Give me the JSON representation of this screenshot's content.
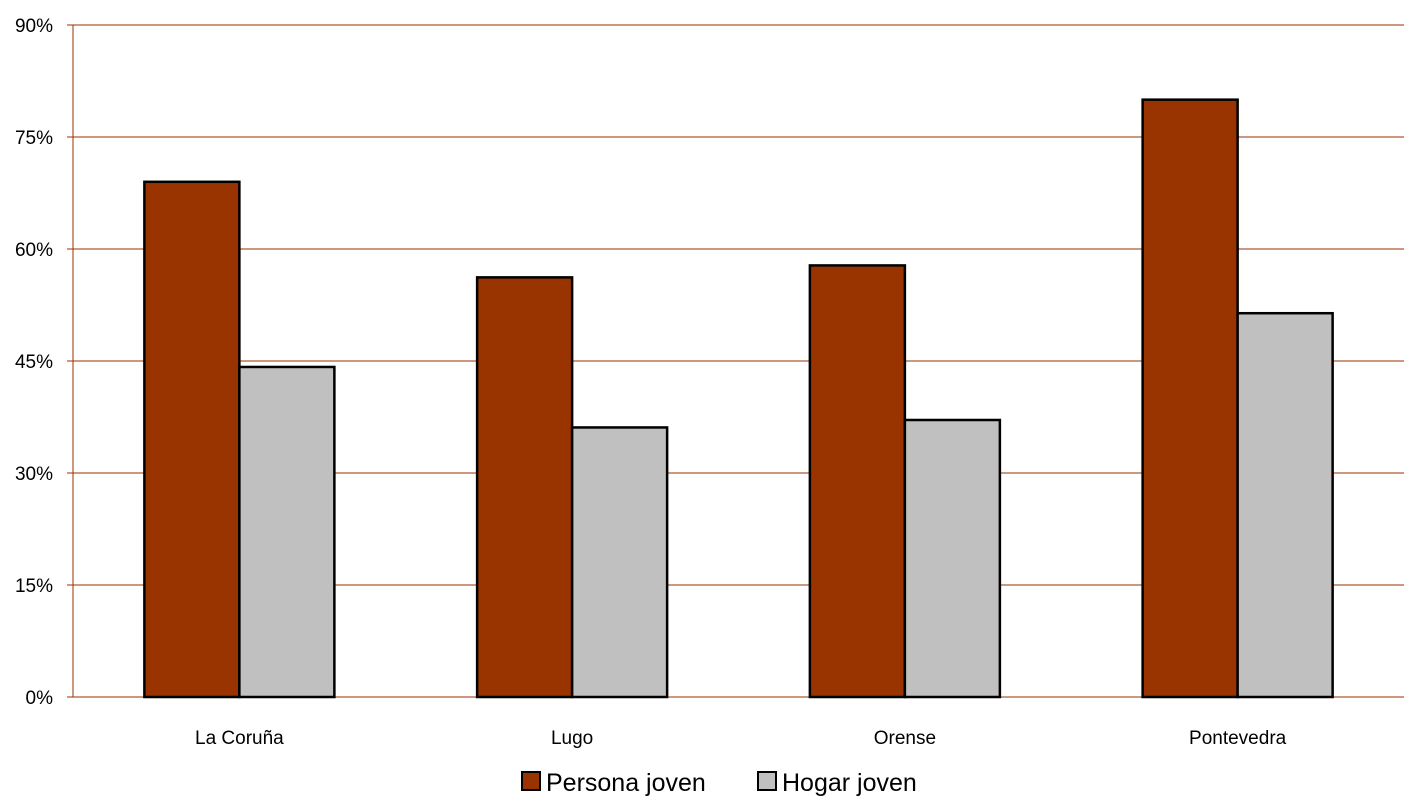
{
  "chart_data": {
    "type": "bar",
    "title": "",
    "xlabel": "",
    "ylabel": "",
    "categories": [
      "La Coruña",
      "Lugo",
      "Orense",
      "Pontevedra"
    ],
    "series": [
      {
        "name": "Persona joven",
        "color": "#993300",
        "values": [
          69,
          56.2,
          57.8,
          80
        ]
      },
      {
        "name": "Hogar joven",
        "color": "#C0C0C0",
        "values": [
          44.2,
          36.1,
          37.1,
          51.4
        ]
      }
    ],
    "ylim": [
      0,
      90
    ],
    "yticks": [
      0,
      15,
      30,
      45,
      60,
      75,
      90
    ],
    "ytick_labels": [
      "0%",
      "15%",
      "30%",
      "45%",
      "60%",
      "75%",
      "90%"
    ],
    "grid": true,
    "grid_color": "#993300",
    "legend_position": "bottom"
  }
}
